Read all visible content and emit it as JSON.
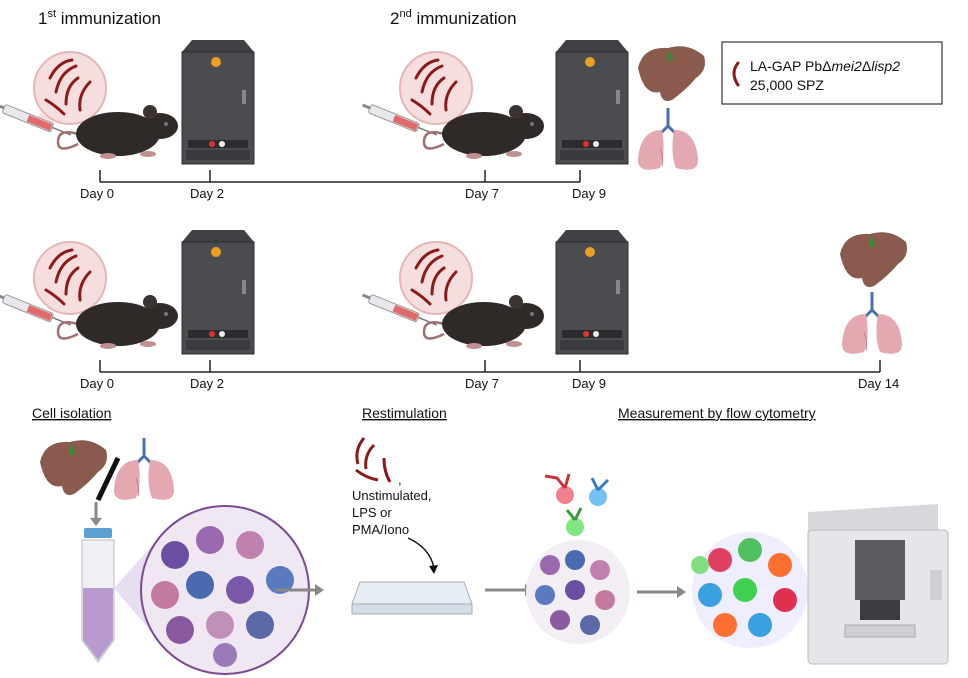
{
  "headings": {
    "first_immunization": "1",
    "first_sup": "st",
    "first_rest": " immunization",
    "second_immunization": "2",
    "second_sup": "nd",
    "second_rest": " immunization"
  },
  "legend": {
    "line1_prefix": "LA-GAP Pb",
    "delta1": "Δ",
    "gene1": "mei2",
    "delta2": "Δ",
    "gene2": "lisp2",
    "line2": "25,000 SPZ",
    "parasite_color": "#8b1a1a"
  },
  "timeline1": {
    "days": [
      "Day 0",
      "Day 2",
      "Day 7",
      "Day 9"
    ]
  },
  "timeline2": {
    "days": [
      "Day 0",
      "Day 2",
      "Day 7",
      "Day 9",
      "Day 14"
    ]
  },
  "sections": {
    "cell_isolation": "Cell isolation",
    "restimulation": "Restimulation",
    "measurement": "Measurement by flow cytometry"
  },
  "restimulation": {
    "comma": ",",
    "lines": [
      "Unstimulated,",
      "LPS or",
      "PMA/Iono"
    ]
  },
  "colors": {
    "parasite": "#8b1a1a",
    "chamber": "#3f4144",
    "liver": "#8a5a4c",
    "lung": "#e3a8b0",
    "mouse": "#2f2a28",
    "antibody_red": "#c8323a",
    "antibody_blue": "#2f7fc0",
    "antibody_green": "#3c9a3c"
  }
}
